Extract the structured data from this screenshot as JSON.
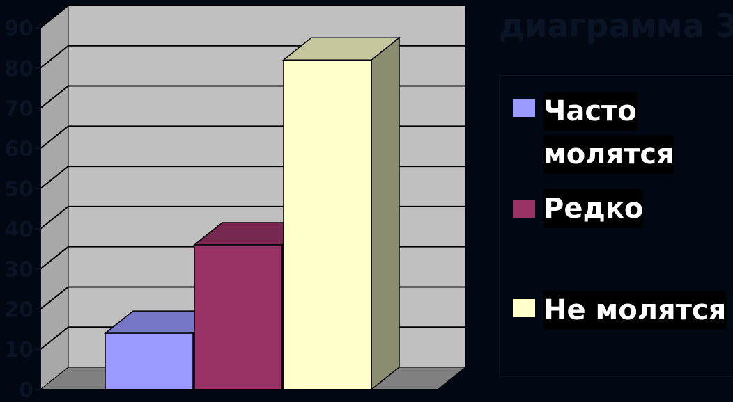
{
  "chart_data": {
    "type": "bar",
    "title": "диаграмма 3",
    "series": [
      {
        "name": "Часто молятся",
        "values": [
          14
        ],
        "color": "#9999ff"
      },
      {
        "name": "Редко",
        "values": [
          36
        ],
        "color": "#993366"
      },
      {
        "name": "Не молятся",
        "values": [
          82
        ],
        "color": "#ffffcc"
      }
    ],
    "ylim": [
      0,
      90
    ],
    "yticks": [
      0,
      10,
      20,
      30,
      40,
      50,
      60,
      70,
      80,
      90
    ],
    "grid": true,
    "legend_position": "right",
    "three_d": true,
    "wall_color": "#c0c0c0",
    "floor_color": "#808080"
  },
  "legend": {
    "items": [
      {
        "label_line1": "Часто",
        "label_line2": "молятся"
      },
      {
        "label_line1": "Редко"
      },
      {
        "label_line1": "Не молятся"
      }
    ]
  }
}
